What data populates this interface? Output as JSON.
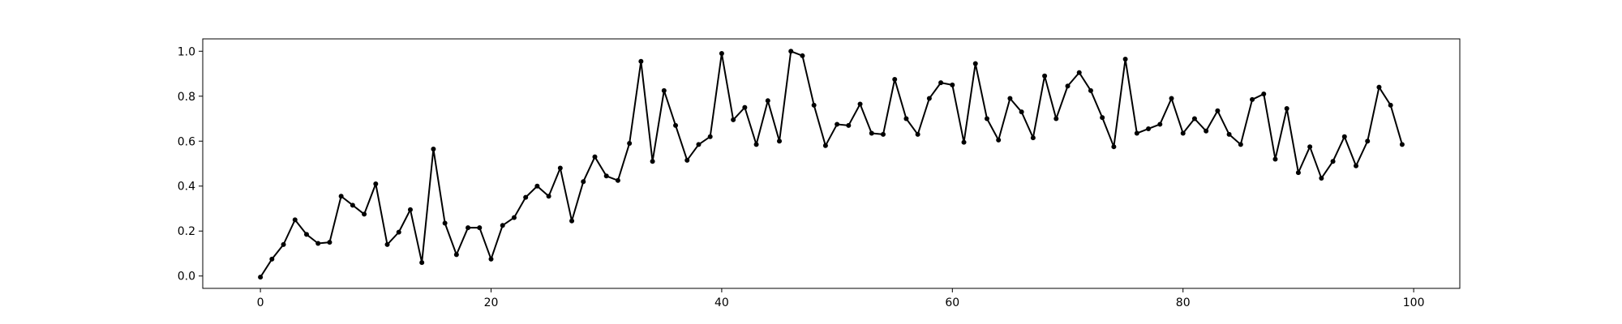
{
  "chart_data": {
    "type": "line",
    "title": "",
    "xlabel": "",
    "ylabel": "",
    "xlim": [
      -5,
      104
    ],
    "ylim": [
      -0.055,
      1.055
    ],
    "xticks": [
      0,
      20,
      40,
      60,
      80,
      100
    ],
    "xtick_labels": [
      "0",
      "20",
      "40",
      "60",
      "80",
      "100"
    ],
    "yticks": [
      0.0,
      0.2,
      0.4,
      0.6,
      0.8,
      1.0
    ],
    "ytick_labels": [
      "0.0",
      "0.2",
      "0.4",
      "0.6",
      "0.8",
      "1.0"
    ],
    "grid": false,
    "line_color": "#000000",
    "series": [
      {
        "x": [
          0,
          1,
          2,
          3,
          4,
          5,
          6,
          7,
          8,
          9,
          10,
          11,
          12,
          13,
          14,
          15,
          16,
          17,
          18,
          19,
          20,
          21,
          22,
          23,
          24,
          25,
          26,
          27,
          28,
          29,
          30,
          31,
          32,
          33,
          34,
          35,
          36,
          37,
          38,
          39,
          40,
          41,
          42,
          43,
          44,
          45,
          46,
          47,
          48,
          49,
          50,
          51,
          52,
          53,
          54,
          55,
          56,
          57,
          58,
          59,
          60,
          61,
          62,
          63,
          64,
          65,
          66,
          67,
          68,
          69,
          70,
          71,
          72,
          73,
          74,
          75,
          76,
          77,
          78,
          79,
          80,
          81,
          82,
          83,
          84,
          85,
          86,
          87,
          88,
          89,
          90,
          91,
          92,
          93,
          94,
          95,
          96,
          97,
          98,
          99
        ],
        "values": [
          -0.005,
          0.075,
          0.14,
          0.25,
          0.185,
          0.145,
          0.15,
          0.355,
          0.315,
          0.275,
          0.41,
          0.14,
          0.195,
          0.295,
          0.06,
          0.565,
          0.235,
          0.095,
          0.215,
          0.215,
          0.075,
          0.225,
          0.26,
          0.35,
          0.4,
          0.355,
          0.48,
          0.245,
          0.42,
          0.53,
          0.445,
          0.425,
          0.59,
          0.955,
          0.51,
          0.825,
          0.67,
          0.515,
          0.585,
          0.62,
          0.99,
          0.695,
          0.75,
          0.585,
          0.78,
          0.6,
          1.0,
          0.98,
          0.76,
          0.58,
          0.675,
          0.67,
          0.765,
          0.635,
          0.63,
          0.875,
          0.7,
          0.63,
          0.79,
          0.86,
          0.85,
          0.595,
          0.945,
          0.7,
          0.605,
          0.79,
          0.73,
          0.615,
          0.89,
          0.7,
          0.845,
          0.905,
          0.825,
          0.705,
          0.575,
          0.965,
          0.635,
          0.655,
          0.675,
          0.79,
          0.635,
          0.7,
          0.645,
          0.735,
          0.63,
          0.585,
          0.785,
          0.81,
          0.52,
          0.745,
          0.46,
          0.575,
          0.435,
          0.51,
          0.62,
          0.49,
          0.6,
          0.84,
          0.76,
          0.585
        ]
      }
    ]
  }
}
